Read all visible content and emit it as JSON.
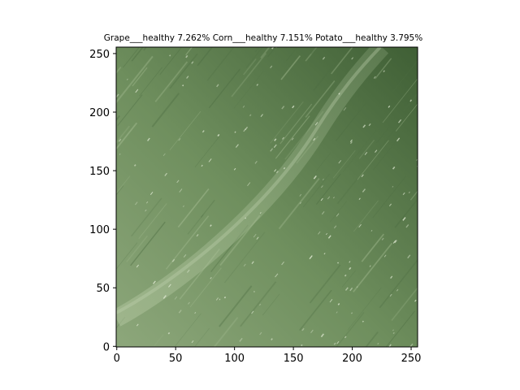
{
  "title": "Grape___healthy 7.262%  Corn___healthy 7.151%  Potato___healthy 3.795%",
  "image": {
    "subject": "green-leaf",
    "colors": {
      "base": "#6f8f5e",
      "light": "#9ab38a",
      "dark": "#3f5f35",
      "vein": "#a9bf94",
      "speck": "#e3ecd6"
    }
  },
  "axes": {
    "x_range": [
      -0.5,
      255.5
    ],
    "y_range": [
      255.5,
      -0.5
    ],
    "x_ticks": [
      0,
      50,
      100,
      150,
      200,
      250
    ],
    "y_ticks": [
      0,
      50,
      100,
      150,
      200,
      250
    ]
  }
}
